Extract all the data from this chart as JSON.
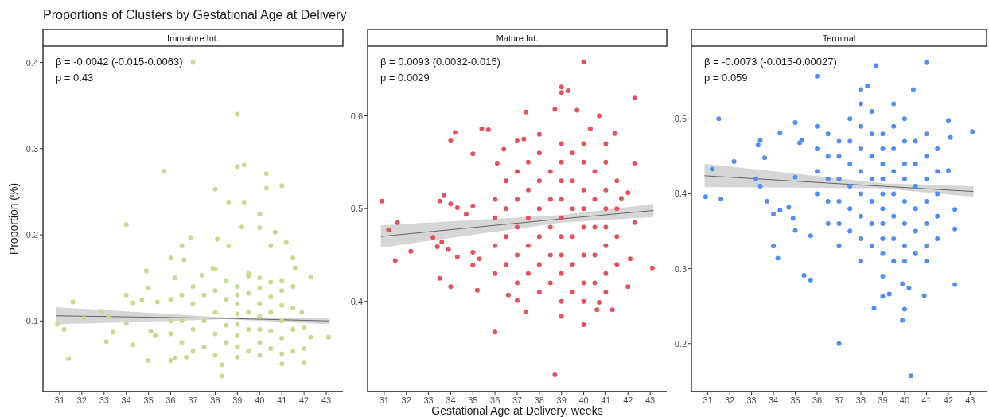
{
  "chart_data": [
    {
      "type": "scatter",
      "title": "Proportions of Clusters by Gestational Age at Delivery",
      "subtitle": "Immature Int.",
      "ylabel": "Proportion (%)",
      "xlim": [
        30.25,
        43.75
      ],
      "xticks": [
        31,
        32,
        33,
        34,
        35,
        36,
        37,
        38,
        39,
        40,
        41,
        42,
        43
      ],
      "ylim": [
        0.018,
        0.419
      ],
      "yticks": [
        0.1,
        0.2,
        0.3,
        0.4
      ],
      "annotations": [
        "β = -0.0042 (-0.015-0.0063)",
        "p = 0.43"
      ],
      "series": [
        {
          "type": "scatter",
          "marker": "circle",
          "color": "#c5dc8c",
          "x": [
            37.0,
            39.0,
            39.0,
            39.3,
            35.7,
            40.3,
            40.3,
            41.0,
            38.0,
            38.6,
            39.3,
            40.0,
            40.0,
            39.2,
            34.0,
            36.9,
            40.7,
            38.1,
            41.2,
            36.5,
            38.6,
            40.5,
            36.0,
            36.6,
            41.5,
            34.9,
            37.9,
            41.6,
            42.3,
            35.0,
            34.0,
            34.3,
            34.7,
            35.4,
            31.6,
            36.2,
            37.4,
            39.5,
            32.9,
            32.1,
            33.2,
            30.9,
            31.2,
            31.4,
            33.1,
            33.4,
            34.0,
            34.3,
            35.0,
            35.1,
            35.3,
            36.0,
            36.2,
            36.7,
            38.3,
            38.3,
            41.0,
            42.0,
            42.0,
            43.1,
            42.3,
            42.0,
            41.9,
            36.0,
            36.0,
            36.0,
            36.5,
            36.5,
            36.5,
            37.0,
            37.0,
            37.0,
            37.0,
            37.5,
            37.5,
            37.5,
            38.0,
            38.0,
            38.0,
            38.0,
            38.0,
            38.5,
            38.5,
            38.5,
            38.5,
            39.0,
            39.0,
            39.0,
            39.0,
            39.0,
            39.0,
            39.0,
            39.0,
            39.5,
            39.5,
            39.5,
            39.5,
            39.5,
            40.0,
            40.0,
            40.0,
            40.0,
            40.0,
            40.0,
            40.0,
            40.5,
            40.5,
            40.5,
            40.5,
            40.5,
            41.0,
            41.0,
            41.0,
            41.0,
            41.0,
            41.0,
            41.5,
            41.5,
            41.5,
            41.5
          ],
          "values": [
            0.4,
            0.34,
            0.279,
            0.281,
            0.274,
            0.271,
            0.254,
            0.257,
            0.253,
            0.238,
            0.238,
            0.224,
            0.208,
            0.209,
            0.212,
            0.197,
            0.203,
            0.195,
            0.191,
            0.187,
            0.187,
            0.187,
            0.173,
            0.171,
            0.173,
            0.158,
            0.161,
            0.162,
            0.151,
            0.138,
            0.13,
            0.121,
            0.124,
            0.122,
            0.122,
            0.15,
            0.153,
            0.152,
            0.111,
            0.103,
            0.105,
            0.096,
            0.09,
            0.056,
            0.076,
            0.087,
            0.097,
            0.072,
            0.054,
            0.088,
            0.083,
            0.054,
            0.057,
            0.058,
            0.049,
            0.036,
            0.05,
            0.051,
            0.068,
            0.081,
            0.081,
            0.092,
            0.11,
            0.085,
            0.1,
            0.125,
            0.075,
            0.1,
            0.13,
            0.065,
            0.09,
            0.12,
            0.14,
            0.07,
            0.1,
            0.13,
            0.06,
            0.085,
            0.11,
            0.135,
            0.16,
            0.075,
            0.095,
            0.125,
            0.147,
            0.058,
            0.07,
            0.083,
            0.096,
            0.108,
            0.12,
            0.13,
            0.14,
            0.065,
            0.09,
            0.11,
            0.132,
            0.155,
            0.06,
            0.075,
            0.09,
            0.105,
            0.12,
            0.138,
            0.15,
            0.068,
            0.088,
            0.11,
            0.128,
            0.145,
            0.062,
            0.08,
            0.1,
            0.118,
            0.135,
            0.147,
            0.065,
            0.09,
            0.115,
            0.14
          ]
        },
        {
          "type": "line",
          "color": "#333333",
          "x": [
            30.85,
            38.5,
            43.15
          ],
          "values": [
            0.106,
            0.103,
            0.1
          ],
          "lower": [
            0.096,
            0.102,
            0.096
          ],
          "upper": [
            0.116,
            0.104,
            0.104
          ]
        }
      ]
    },
    {
      "type": "scatter",
      "subtitle": "Mature Int.",
      "xlabel": "Gestational Age at Delivery, weeks",
      "xlim": [
        30.25,
        43.75
      ],
      "xticks": [
        31,
        32,
        33,
        34,
        35,
        36,
        37,
        38,
        39,
        40,
        41,
        42,
        43
      ],
      "ylim": [
        0.303,
        0.675
      ],
      "yticks": [
        0.4,
        0.5,
        0.6
      ],
      "annotations": [
        "β = 0.0093 (0.0032-0.015)",
        "p = 0.0029"
      ],
      "series": [
        {
          "type": "scatter",
          "marker": "circle",
          "color": "#e5525b",
          "x": [
            40.0,
            39.0,
            39.0,
            39.3,
            42.3,
            38.7,
            37.4,
            39.7,
            40.7,
            34.2,
            34.0,
            35.4,
            35.7,
            35.0,
            30.9,
            31.2,
            31.6,
            31.5,
            32.2,
            33.2,
            33.4,
            33.5,
            33.7,
            33.6,
            34.0,
            33.9,
            34.3,
            34.3,
            34.0,
            33.5,
            34.7,
            35.0,
            35.0,
            35.0,
            35.2,
            35.3,
            36.0,
            38.7,
            39.0,
            40.0,
            43.1,
            42.0,
            42.0,
            42.3,
            42.3,
            42.1,
            41.7,
            37.4,
            40.7,
            41.3,
            40.6,
            36.1,
            36.4,
            37.0,
            37.3,
            38.0,
            40.3,
            41.4,
            37.0,
            36.6,
            36.0,
            36.0,
            36.0,
            36.0,
            36.5,
            36.5,
            36.5,
            36.5,
            37.0,
            37.0,
            37.0,
            37.0,
            37.0,
            37.5,
            37.5,
            37.5,
            37.5,
            37.5,
            38.0,
            38.0,
            38.0,
            38.0,
            38.0,
            38.0,
            38.5,
            38.5,
            38.5,
            38.5,
            38.5,
            39.0,
            39.0,
            39.0,
            39.0,
            39.0,
            39.0,
            39.0,
            39.0,
            39.0,
            39.5,
            39.5,
            39.5,
            39.5,
            39.5,
            39.5,
            40.0,
            40.0,
            40.0,
            40.0,
            40.0,
            40.0,
            40.0,
            40.0,
            40.5,
            40.5,
            40.5,
            40.5,
            40.5,
            41.0,
            41.0,
            41.0,
            41.0,
            41.0,
            41.0,
            41.0,
            41.0,
            41.5,
            41.5,
            41.5,
            41.5
          ],
          "values": [
            0.658,
            0.631,
            0.625,
            0.627,
            0.619,
            0.607,
            0.604,
            0.606,
            0.6,
            0.582,
            0.573,
            0.586,
            0.585,
            0.559,
            0.508,
            0.477,
            0.485,
            0.444,
            0.454,
            0.469,
            0.459,
            0.508,
            0.514,
            0.464,
            0.505,
            0.456,
            0.501,
            0.448,
            0.416,
            0.425,
            0.494,
            0.503,
            0.453,
            0.439,
            0.412,
            0.446,
            0.367,
            0.321,
            0.384,
            0.375,
            0.436,
            0.416,
            0.517,
            0.549,
            0.485,
            0.446,
            0.511,
            0.389,
            0.399,
            0.391,
            0.391,
            0.549,
            0.564,
            0.573,
            0.575,
            0.58,
            0.586,
            0.581,
            0.401,
            0.407,
            0.43,
            0.46,
            0.49,
            0.51,
            0.44,
            0.47,
            0.5,
            0.53,
            0.42,
            0.45,
            0.48,
            0.51,
            0.54,
            0.43,
            0.46,
            0.49,
            0.52,
            0.55,
            0.41,
            0.44,
            0.47,
            0.5,
            0.53,
            0.56,
            0.42,
            0.45,
            0.48,
            0.51,
            0.54,
            0.4,
            0.43,
            0.45,
            0.47,
            0.49,
            0.51,
            0.53,
            0.55,
            0.57,
            0.41,
            0.44,
            0.47,
            0.5,
            0.53,
            0.56,
            0.4,
            0.42,
            0.45,
            0.48,
            0.5,
            0.52,
            0.55,
            0.57,
            0.42,
            0.45,
            0.48,
            0.51,
            0.54,
            0.41,
            0.43,
            0.46,
            0.48,
            0.5,
            0.52,
            0.55,
            0.57,
            0.44,
            0.47,
            0.5,
            0.53
          ]
        },
        {
          "type": "line",
          "color": "#333333",
          "x": [
            30.85,
            39.0,
            43.15
          ],
          "values": [
            0.47,
            0.489,
            0.498
          ],
          "lower": [
            0.458,
            0.485,
            0.491
          ],
          "upper": [
            0.482,
            0.493,
            0.505
          ]
        }
      ]
    },
    {
      "type": "scatter",
      "subtitle": "Terminal",
      "xlim": [
        30.25,
        43.75
      ],
      "xticks": [
        31,
        32,
        33,
        34,
        35,
        36,
        37,
        38,
        39,
        40,
        41,
        42,
        43
      ],
      "ylim": [
        0.136,
        0.597
      ],
      "yticks": [
        0.2,
        0.3,
        0.4,
        0.5
      ],
      "annotations": [
        "β = -0.0073 (-0.015-0.00027)",
        "p = 0.059"
      ],
      "series": [
        {
          "type": "scatter",
          "marker": "circle",
          "color": "#4f8ff5",
          "x": [
            41.0,
            38.7,
            36.0,
            38.3,
            38.0,
            40.4,
            31.5,
            31.2,
            30.9,
            31.6,
            32.2,
            33.3,
            33.4,
            33.6,
            34.3,
            33.2,
            33.4,
            33.7,
            34.0,
            34.3,
            34.0,
            34.2,
            35.0,
            35.2,
            35.3,
            35.0,
            34.7,
            34.9,
            35.0,
            35.4,
            35.7,
            35.7,
            37.0,
            38.6,
            40.3,
            39.9,
            40.0,
            42.3,
            42.3,
            42.3,
            43.1,
            42.1,
            42.0,
            42.0,
            40.9,
            39.0,
            39.3,
            39.9,
            40.2,
            36.0,
            36.0,
            36.0,
            36.0,
            36.5,
            36.5,
            36.5,
            36.5,
            36.5,
            37.0,
            37.0,
            37.0,
            37.0,
            37.0,
            37.0,
            37.5,
            37.5,
            37.5,
            37.5,
            37.5,
            37.5,
            38.0,
            38.0,
            38.0,
            38.0,
            38.0,
            38.0,
            38.0,
            38.0,
            38.5,
            38.5,
            38.5,
            38.5,
            38.5,
            38.5,
            38.5,
            39.0,
            39.0,
            39.0,
            39.0,
            39.0,
            39.0,
            39.0,
            39.0,
            39.0,
            39.0,
            39.5,
            39.5,
            39.5,
            39.5,
            39.5,
            39.5,
            39.5,
            39.5,
            40.0,
            40.0,
            40.0,
            40.0,
            40.0,
            40.0,
            40.0,
            40.0,
            40.5,
            40.5,
            40.5,
            40.5,
            40.5,
            40.5,
            41.0,
            41.0,
            41.0,
            41.0,
            41.0,
            41.0,
            41.0,
            41.5,
            41.5,
            41.5,
            41.5,
            41.5
          ],
          "values": [
            0.575,
            0.571,
            0.557,
            0.544,
            0.539,
            0.539,
            0.5,
            0.433,
            0.396,
            0.393,
            0.443,
            0.465,
            0.471,
            0.448,
            0.481,
            0.42,
            0.41,
            0.39,
            0.373,
            0.378,
            0.33,
            0.314,
            0.495,
            0.468,
            0.472,
            0.422,
            0.382,
            0.367,
            0.351,
            0.291,
            0.285,
            0.344,
            0.2,
            0.247,
            0.157,
            0.231,
            0.246,
            0.279,
            0.379,
            0.353,
            0.483,
            0.475,
            0.498,
            0.431,
            0.264,
            0.263,
            0.266,
            0.28,
            0.274,
            0.4,
            0.43,
            0.46,
            0.49,
            0.36,
            0.39,
            0.42,
            0.45,
            0.48,
            0.33,
            0.36,
            0.39,
            0.42,
            0.45,
            0.47,
            0.35,
            0.38,
            0.41,
            0.44,
            0.47,
            0.5,
            0.31,
            0.34,
            0.37,
            0.4,
            0.43,
            0.46,
            0.49,
            0.52,
            0.33,
            0.36,
            0.39,
            0.42,
            0.45,
            0.48,
            0.51,
            0.29,
            0.32,
            0.34,
            0.36,
            0.38,
            0.4,
            0.42,
            0.44,
            0.46,
            0.48,
            0.31,
            0.34,
            0.37,
            0.4,
            0.43,
            0.46,
            0.49,
            0.52,
            0.31,
            0.33,
            0.36,
            0.39,
            0.42,
            0.44,
            0.47,
            0.5,
            0.32,
            0.35,
            0.38,
            0.41,
            0.44,
            0.47,
            0.31,
            0.33,
            0.36,
            0.39,
            0.42,
            0.45,
            0.48,
            0.34,
            0.37,
            0.4,
            0.43,
            0.46
          ]
        },
        {
          "type": "line",
          "color": "#333333",
          "x": [
            30.85,
            39.0,
            43.15
          ],
          "values": [
            0.424,
            0.41,
            0.403
          ],
          "lower": [
            0.409,
            0.407,
            0.396
          ],
          "upper": [
            0.44,
            0.414,
            0.41
          ]
        }
      ]
    }
  ]
}
